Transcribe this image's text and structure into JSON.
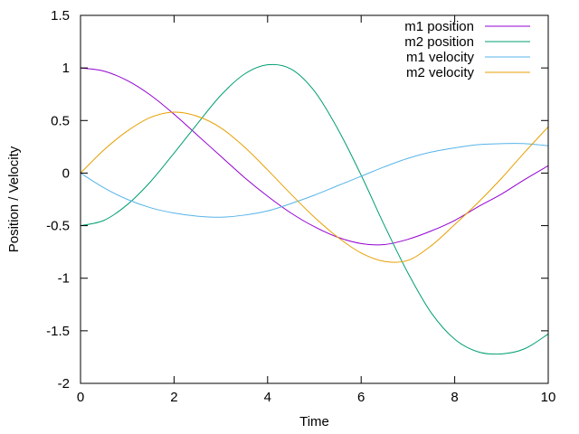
{
  "chart_data": {
    "type": "line",
    "title": "",
    "xlabel": "Time",
    "ylabel": "Position / Velocity",
    "xlim": [
      0,
      10
    ],
    "ylim": [
      -2,
      1.5
    ],
    "xticks": [
      0,
      2,
      4,
      6,
      8,
      10
    ],
    "xtick_labels": [
      "0",
      "2",
      "4",
      "6",
      "8",
      "10"
    ],
    "yticks": [
      -2,
      -1.5,
      -1,
      -0.5,
      0,
      0.5,
      1,
      1.5
    ],
    "ytick_labels": [
      "-2",
      "-1.5",
      "-1",
      "-0.5",
      "0",
      "0.5",
      "1",
      "1.5"
    ],
    "grid": false,
    "legend_position": "top-right",
    "series": [
      {
        "name": "m1 position",
        "color": "#9400d3",
        "x": [
          0,
          0.5,
          1,
          1.5,
          2,
          2.5,
          3,
          3.5,
          4,
          4.5,
          5,
          5.5,
          6,
          6.5,
          7,
          7.5,
          8,
          8.5,
          9,
          9.5,
          10
        ],
        "y": [
          1.0,
          0.97,
          0.88,
          0.74,
          0.56,
          0.36,
          0.16,
          -0.04,
          -0.22,
          -0.38,
          -0.51,
          -0.61,
          -0.67,
          -0.68,
          -0.63,
          -0.55,
          -0.45,
          -0.32,
          -0.2,
          -0.06,
          0.07
        ]
      },
      {
        "name": "m2 position",
        "color": "#009e73",
        "x": [
          0,
          0.5,
          1,
          1.5,
          2,
          2.5,
          3,
          3.5,
          4,
          4.5,
          5,
          5.5,
          6,
          6.5,
          7,
          7.5,
          8,
          8.5,
          9,
          9.5,
          10
        ],
        "y": [
          -0.5,
          -0.45,
          -0.3,
          -0.08,
          0.19,
          0.47,
          0.74,
          0.94,
          1.03,
          0.99,
          0.78,
          0.42,
          -0.02,
          -0.5,
          -0.95,
          -1.33,
          -1.58,
          -1.7,
          -1.72,
          -1.67,
          -1.53
        ]
      },
      {
        "name": "m1 velocity",
        "color": "#56b4e9",
        "x": [
          0,
          0.5,
          1,
          1.5,
          2,
          2.5,
          3,
          3.5,
          4,
          4.5,
          5,
          5.5,
          6,
          6.5,
          7,
          7.5,
          8,
          8.5,
          9,
          9.5,
          10
        ],
        "y": [
          0.0,
          -0.14,
          -0.25,
          -0.33,
          -0.38,
          -0.41,
          -0.42,
          -0.4,
          -0.36,
          -0.29,
          -0.21,
          -0.12,
          -0.03,
          0.06,
          0.14,
          0.2,
          0.24,
          0.27,
          0.28,
          0.28,
          0.26
        ]
      },
      {
        "name": "m2 velocity",
        "color": "#e69f00",
        "x": [
          0,
          0.5,
          1,
          1.5,
          2,
          2.5,
          3,
          3.5,
          4,
          4.5,
          5,
          5.5,
          6,
          6.5,
          7,
          7.5,
          8,
          8.5,
          9,
          9.5,
          10
        ],
        "y": [
          0.0,
          0.22,
          0.4,
          0.53,
          0.58,
          0.54,
          0.43,
          0.25,
          0.03,
          -0.2,
          -0.42,
          -0.61,
          -0.76,
          -0.84,
          -0.83,
          -0.69,
          -0.49,
          -0.28,
          -0.05,
          0.2,
          0.44
        ]
      }
    ]
  }
}
